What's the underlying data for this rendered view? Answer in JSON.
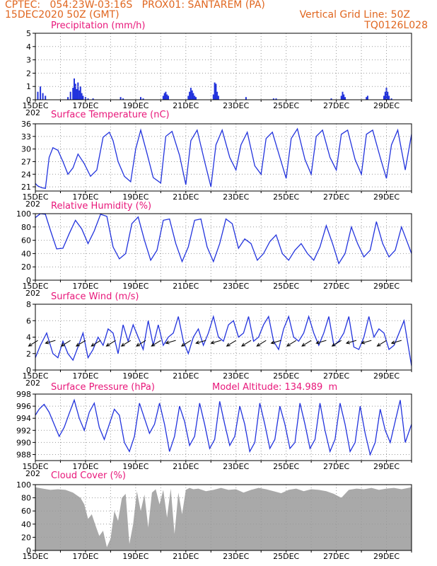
{
  "header": {
    "left_line1": "CPTEC:   054:23W-03:16S   PROX01: SANTAREM (PA)",
    "left_line2": "15DEC2020 50Z (GMT)",
    "right_line2": "Vertical Grid Line: 50Z",
    "right_line3": "TQ0126L028"
  },
  "colors": {
    "header": "#e0661f",
    "title": "#e8177a",
    "series": "#2233dd",
    "cloud": "#a9a9a9"
  },
  "x_axis": {
    "labels": [
      "15DEC",
      "17DEC",
      "19DEC",
      "21DEC",
      "23DEC",
      "25DEC",
      "27DEC",
      "29DEC"
    ],
    "clipped_label": "202",
    "range_days": [
      15,
      30
    ]
  },
  "chart_data": [
    {
      "type": "bar",
      "title": "Precipitation (mm/h)",
      "ylim": [
        0,
        5
      ],
      "yticks": [
        "0",
        "1",
        "2",
        "3",
        "4",
        "5"
      ],
      "x": [
        15.1,
        15.2,
        15.3,
        15.4,
        16.3,
        16.4,
        16.5,
        16.55,
        16.6,
        16.65,
        16.7,
        16.75,
        16.8,
        16.85,
        16.9,
        17.0,
        17.1,
        17.3,
        18.4,
        18.5,
        19.2,
        19.3,
        20.1,
        20.15,
        20.2,
        20.25,
        20.3,
        21.1,
        21.15,
        21.2,
        21.25,
        21.3,
        21.35,
        21.4,
        22.1,
        22.15,
        22.2,
        22.25,
        22.3,
        23.4,
        24.5,
        24.6,
        26.8,
        27.2,
        27.25,
        27.3,
        27.35,
        28.2,
        28.25,
        28.9,
        28.95,
        29.0,
        29.05,
        29.1,
        29.2
      ],
      "values": [
        0.6,
        1.0,
        0.5,
        0.3,
        0.2,
        0.6,
        0.9,
        1.6,
        1.2,
        0.8,
        1.3,
        0.7,
        1.0,
        0.5,
        0.3,
        0.2,
        0.1,
        0.1,
        0.2,
        0.1,
        0.2,
        0.1,
        0.3,
        0.5,
        0.6,
        0.4,
        0.3,
        0.3,
        0.6,
        0.9,
        0.7,
        0.5,
        0.3,
        0.2,
        0.4,
        1.3,
        1.2,
        0.6,
        0.3,
        0.2,
        0.1,
        0.1,
        0.1,
        0.3,
        0.6,
        0.4,
        0.2,
        0.2,
        0.3,
        0.3,
        0.6,
        0.9,
        0.6,
        0.3,
        0.1
      ]
    },
    {
      "type": "line",
      "title": "Surface Temperature (nC)",
      "ylim": [
        20,
        36
      ],
      "yticks": [
        "21",
        "24",
        "27",
        "30",
        "33",
        "36"
      ],
      "x": [
        15.0,
        15.1,
        15.25,
        15.4,
        15.55,
        15.7,
        15.9,
        16.1,
        16.3,
        16.5,
        16.7,
        16.95,
        17.2,
        17.45,
        17.7,
        17.95,
        18.1,
        18.3,
        18.55,
        18.8,
        19.0,
        19.2,
        19.45,
        19.7,
        20.0,
        20.2,
        20.45,
        20.75,
        21.0,
        21.2,
        21.45,
        21.75,
        22.0,
        22.2,
        22.45,
        22.75,
        23.0,
        23.2,
        23.45,
        23.75,
        24.0,
        24.2,
        24.45,
        24.75,
        25.0,
        25.2,
        25.45,
        25.75,
        26.0,
        26.2,
        26.45,
        26.75,
        27.0,
        27.2,
        27.45,
        27.75,
        28.0,
        28.2,
        28.45,
        28.75,
        29.0,
        29.2,
        29.45,
        29.75,
        30.0
      ],
      "values": [
        21.8,
        21.2,
        20.8,
        20.6,
        28.0,
        30.3,
        29.7,
        27.0,
        24.0,
        25.5,
        28.8,
        26.5,
        23.5,
        25.0,
        32.8,
        34.0,
        32.0,
        27.0,
        23.5,
        22.2,
        30.0,
        34.5,
        29.0,
        23.2,
        21.9,
        33.0,
        34.2,
        28.5,
        21.5,
        32.0,
        34.5,
        27.0,
        21.0,
        31.0,
        34.5,
        28.0,
        25.0,
        31.0,
        34.0,
        26.0,
        24.0,
        32.5,
        34.0,
        28.0,
        23.0,
        32.5,
        34.8,
        27.5,
        24.0,
        33.0,
        34.5,
        28.0,
        25.0,
        33.5,
        34.5,
        27.5,
        24.0,
        33.5,
        34.5,
        28.0,
        23.0,
        31.0,
        34.5,
        25.0,
        33.5
      ]
    },
    {
      "type": "line",
      "title": "Relative Humidity (%)",
      "ylim": [
        0,
        100
      ],
      "yticks": [
        "0",
        "20",
        "40",
        "60",
        "80",
        "100"
      ],
      "x": [
        15.0,
        15.2,
        15.4,
        15.6,
        15.85,
        16.1,
        16.35,
        16.6,
        16.85,
        17.1,
        17.35,
        17.6,
        17.85,
        18.1,
        18.35,
        18.6,
        18.85,
        19.1,
        19.35,
        19.6,
        19.85,
        20.1,
        20.35,
        20.6,
        20.85,
        21.1,
        21.35,
        21.6,
        21.85,
        22.1,
        22.35,
        22.6,
        22.85,
        23.1,
        23.35,
        23.6,
        23.85,
        24.1,
        24.35,
        24.6,
        24.85,
        25.1,
        25.35,
        25.6,
        25.85,
        26.1,
        26.35,
        26.6,
        26.85,
        27.1,
        27.35,
        27.6,
        27.85,
        28.1,
        28.35,
        28.6,
        28.85,
        29.1,
        29.35,
        29.6,
        29.85,
        30.0
      ],
      "values": [
        94,
        100,
        99,
        75,
        47,
        48,
        70,
        90,
        77,
        55,
        74,
        99,
        96,
        50,
        32,
        40,
        85,
        95,
        60,
        30,
        45,
        90,
        92,
        55,
        28,
        50,
        90,
        92,
        50,
        28,
        55,
        92,
        85,
        48,
        62,
        55,
        30,
        40,
        58,
        68,
        40,
        30,
        45,
        55,
        40,
        30,
        50,
        82,
        55,
        25,
        40,
        80,
        55,
        35,
        45,
        88,
        55,
        35,
        45,
        80,
        55,
        40
      ]
    },
    {
      "type": "line",
      "title": "Surface Wind (m/s)",
      "ylim": [
        0,
        8
      ],
      "yticks": [
        "0",
        "2",
        "4",
        "6",
        "8"
      ],
      "x": [
        15.0,
        15.2,
        15.45,
        15.7,
        15.9,
        16.1,
        16.3,
        16.5,
        16.7,
        16.9,
        17.1,
        17.3,
        17.5,
        17.7,
        17.9,
        18.1,
        18.3,
        18.5,
        18.7,
        18.9,
        19.1,
        19.3,
        19.5,
        19.7,
        19.9,
        20.1,
        20.3,
        20.5,
        20.7,
        20.9,
        21.1,
        21.3,
        21.5,
        21.7,
        21.9,
        22.1,
        22.3,
        22.5,
        22.7,
        22.9,
        23.1,
        23.3,
        23.5,
        23.7,
        23.9,
        24.1,
        24.3,
        24.5,
        24.7,
        24.9,
        25.1,
        25.3,
        25.5,
        25.7,
        25.9,
        26.1,
        26.3,
        26.5,
        26.7,
        26.9,
        27.1,
        27.3,
        27.5,
        27.7,
        27.9,
        28.1,
        28.3,
        28.5,
        28.7,
        28.9,
        29.1,
        29.3,
        29.5,
        29.7,
        30.0
      ],
      "values": [
        1.5,
        3.0,
        4.5,
        2.0,
        1.5,
        3.5,
        2.0,
        1.2,
        2.8,
        4.5,
        1.5,
        2.5,
        4.0,
        3.0,
        5.0,
        4.5,
        2.0,
        5.5,
        3.5,
        5.5,
        4.0,
        2.5,
        6.0,
        3.0,
        5.5,
        3.0,
        4.0,
        4.5,
        6.5,
        3.5,
        2.0,
        4.0,
        5.0,
        3.0,
        4.5,
        6.5,
        4.0,
        3.5,
        5.5,
        6.0,
        4.0,
        4.5,
        6.5,
        3.5,
        4.0,
        5.5,
        6.5,
        3.5,
        2.5,
        5.0,
        6.5,
        4.0,
        3.5,
        4.5,
        6.5,
        4.5,
        3.0,
        4.5,
        6.5,
        3.0,
        3.5,
        4.5,
        6.5,
        2.8,
        2.5,
        4.0,
        6.5,
        4.0,
        5.0,
        4.5,
        2.5,
        3.0,
        4.5,
        6.0,
        0.5
      ],
      "arrows": [
        {
          "x": 15.1,
          "dir": "to-sw"
        },
        {
          "x": 15.8,
          "dir": "to-w"
        },
        {
          "x": 16.4,
          "dir": "to-sw"
        },
        {
          "x": 17.0,
          "dir": "to-sw"
        },
        {
          "x": 17.6,
          "dir": "to-sw"
        },
        {
          "x": 18.2,
          "dir": "to-sw"
        },
        {
          "x": 18.8,
          "dir": "to-sw"
        },
        {
          "x": 19.4,
          "dir": "to-sw"
        },
        {
          "x": 20.0,
          "dir": "to-sw"
        },
        {
          "x": 20.6,
          "dir": "to-w"
        },
        {
          "x": 21.2,
          "dir": "to-sw"
        },
        {
          "x": 21.8,
          "dir": "to-w"
        },
        {
          "x": 22.4,
          "dir": "to-w"
        },
        {
          "x": 23.0,
          "dir": "to-sw"
        },
        {
          "x": 23.6,
          "dir": "to-sw"
        },
        {
          "x": 24.2,
          "dir": "to-sw"
        },
        {
          "x": 24.8,
          "dir": "to-w"
        },
        {
          "x": 25.4,
          "dir": "to-sw"
        },
        {
          "x": 26.0,
          "dir": "to-sw"
        },
        {
          "x": 26.6,
          "dir": "to-w"
        },
        {
          "x": 27.2,
          "dir": "to-sw"
        },
        {
          "x": 27.8,
          "dir": "to-w"
        },
        {
          "x": 28.4,
          "dir": "to-w"
        },
        {
          "x": 29.0,
          "dir": "to-sw"
        },
        {
          "x": 29.6,
          "dir": "to-w"
        }
      ]
    },
    {
      "type": "line",
      "title": "Surface Pressure (hPa)",
      "extra_label": "Model Altitude: 134.989  m",
      "ylim": [
        987,
        998
      ],
      "yticks": [
        "988",
        "990",
        "992",
        "994",
        "996",
        "998"
      ],
      "x": [
        15.0,
        15.15,
        15.35,
        15.55,
        15.75,
        15.95,
        16.15,
        16.35,
        16.55,
        16.75,
        16.95,
        17.15,
        17.35,
        17.55,
        17.75,
        17.95,
        18.15,
        18.35,
        18.55,
        18.75,
        18.95,
        19.15,
        19.35,
        19.55,
        19.75,
        19.95,
        20.15,
        20.35,
        20.55,
        20.75,
        20.95,
        21.15,
        21.35,
        21.55,
        21.75,
        21.95,
        22.15,
        22.35,
        22.55,
        22.75,
        22.95,
        23.15,
        23.35,
        23.55,
        23.75,
        23.95,
        24.15,
        24.35,
        24.55,
        24.75,
        24.95,
        25.15,
        25.35,
        25.55,
        25.75,
        25.95,
        26.15,
        26.35,
        26.55,
        26.75,
        26.95,
        27.15,
        27.35,
        27.55,
        27.75,
        27.95,
        28.15,
        28.35,
        28.55,
        28.75,
        28.95,
        29.15,
        29.35,
        29.55,
        29.75,
        30.0
      ],
      "values": [
        994.5,
        995.5,
        996.3,
        995.0,
        993.0,
        991.0,
        992.5,
        994.8,
        997.0,
        994.0,
        992.0,
        995.0,
        996.5,
        992.5,
        990.5,
        993.0,
        995.5,
        994.5,
        990.0,
        988.5,
        991.0,
        996.5,
        994.0,
        991.5,
        993.0,
        996.5,
        993.0,
        988.5,
        991.0,
        996.0,
        993.5,
        989.5,
        991.0,
        996.5,
        993.0,
        989.0,
        990.5,
        996.8,
        993.0,
        989.5,
        991.0,
        996.0,
        993.0,
        988.5,
        990.0,
        996.5,
        993.0,
        989.0,
        990.5,
        996.0,
        993.0,
        989.0,
        990.0,
        996.5,
        993.0,
        989.0,
        990.5,
        996.5,
        992.0,
        988.5,
        990.5,
        996.5,
        993.0,
        988.5,
        990.0,
        996.0,
        991.5,
        988.0,
        990.0,
        995.5,
        992.0,
        990.0,
        993.5,
        997.0,
        990.0,
        993.0
      ]
    },
    {
      "type": "area",
      "title": "Cloud Cover (%)",
      "ylim": [
        0,
        100
      ],
      "yticks": [
        "0",
        "20",
        "40",
        "60",
        "80",
        "100"
      ],
      "x": [
        15.0,
        15.3,
        15.6,
        15.9,
        16.2,
        16.5,
        16.8,
        16.95,
        17.1,
        17.25,
        17.4,
        17.55,
        17.7,
        17.85,
        18.0,
        18.15,
        18.3,
        18.45,
        18.6,
        18.75,
        18.9,
        19.05,
        19.2,
        19.35,
        19.5,
        19.65,
        19.8,
        19.95,
        20.1,
        20.25,
        20.4,
        20.55,
        20.7,
        20.85,
        21.0,
        21.15,
        21.3,
        21.5,
        21.8,
        22.1,
        22.4,
        22.7,
        23.0,
        23.3,
        23.6,
        23.9,
        24.2,
        24.5,
        24.8,
        25.1,
        25.4,
        25.7,
        26.0,
        26.3,
        26.6,
        26.9,
        27.2,
        27.5,
        27.8,
        28.1,
        28.4,
        28.7,
        29.0,
        29.3,
        29.6,
        30.0
      ],
      "values": [
        96,
        94,
        92,
        93,
        92,
        88,
        80,
        70,
        48,
        55,
        38,
        22,
        30,
        5,
        18,
        60,
        45,
        80,
        86,
        10,
        40,
        90,
        60,
        85,
        35,
        88,
        93,
        70,
        92,
        50,
        94,
        25,
        88,
        55,
        92,
        95,
        93,
        94,
        90,
        92,
        95,
        92,
        93,
        88,
        92,
        95,
        93,
        90,
        87,
        92,
        94,
        90,
        93,
        92,
        90,
        86,
        80,
        92,
        94,
        93,
        95,
        92,
        94,
        95,
        93,
        96
      ]
    }
  ]
}
